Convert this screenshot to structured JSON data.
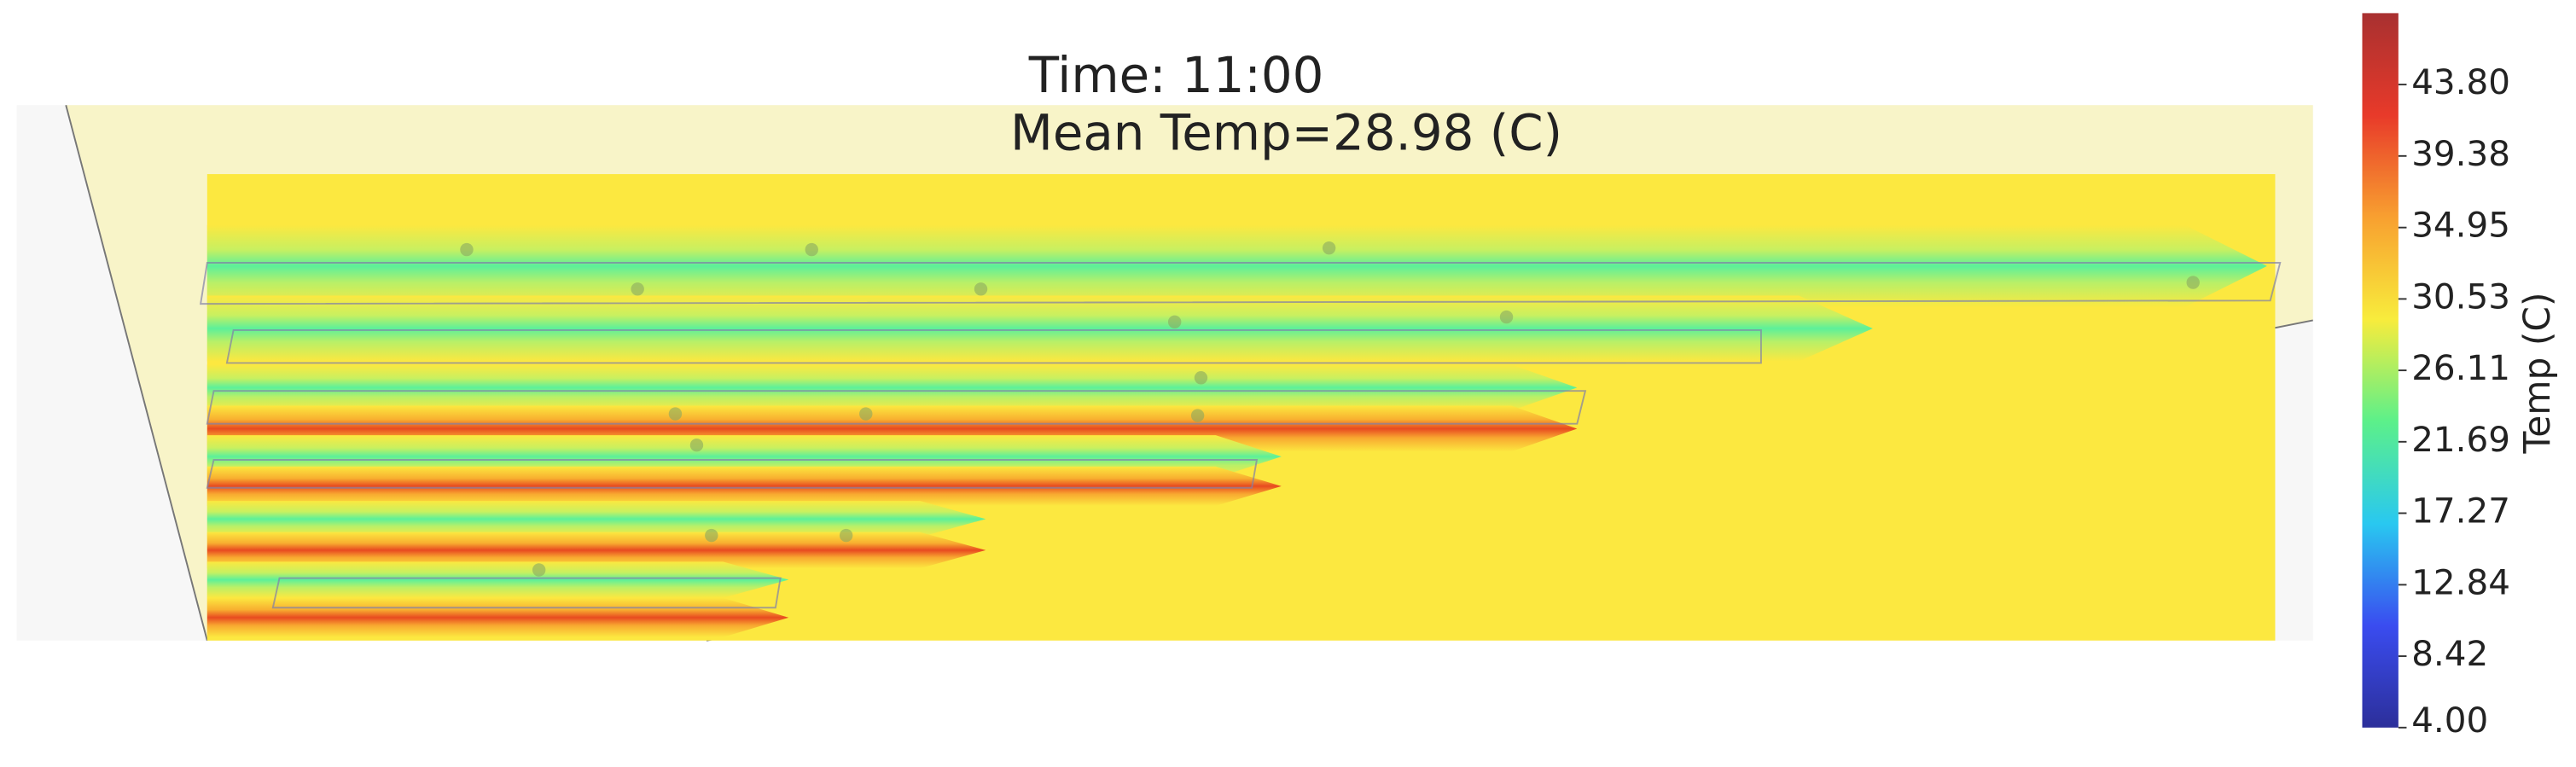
{
  "chart_data": {
    "type": "heatmap",
    "title": "Time: 11:00",
    "subtitle": "Mean Temp=28.98 (C)",
    "colorbar_label": "Temp (C)",
    "colorbar_lim": [
      4,
      48.22
    ],
    "colorbar_ticks": [
      {
        "value": 4,
        "label": "4.00"
      },
      {
        "value": 8.42,
        "label": "8.42"
      },
      {
        "value": 12.84,
        "label": "12.84"
      },
      {
        "value": 17.27,
        "label": "17.27"
      },
      {
        "value": 21.69,
        "label": "21.69"
      },
      {
        "value": 26.11,
        "label": "26.11"
      },
      {
        "value": 30.53,
        "label": "30.53"
      },
      {
        "value": 34.95,
        "label": "34.95"
      },
      {
        "value": 39.38,
        "label": "39.38"
      },
      {
        "value": 43.8,
        "label": "43.80"
      }
    ],
    "colormap": [
      "#2c2f9a",
      "#3a4cf0",
      "#29c8f0",
      "#5cf08a",
      "#f8ec3c",
      "#f8a030",
      "#e83a2a",
      "#a83030"
    ]
  }
}
